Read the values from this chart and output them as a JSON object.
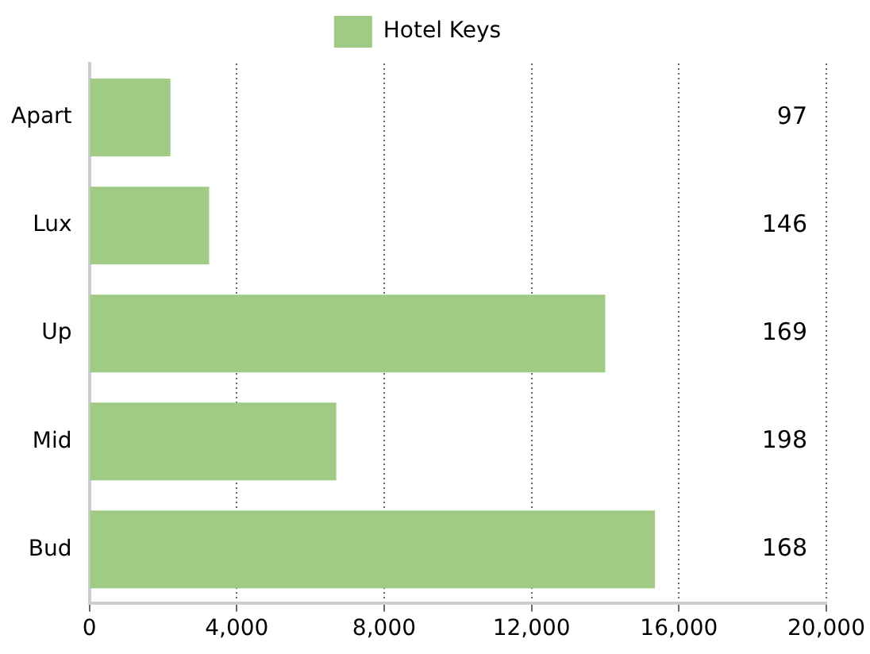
{
  "chart_data": {
    "type": "bar",
    "orientation": "horizontal",
    "categories": [
      "Apart",
      "Lux",
      "Up",
      "Mid",
      "Bud"
    ],
    "series": [
      {
        "name": "Hotel Keys",
        "color": "#9fcb84",
        "values": [
          2200,
          3250,
          14000,
          6700,
          15350
        ]
      }
    ],
    "xlim": [
      0,
      20000
    ],
    "xticks": [
      {
        "value": 0,
        "label": "0"
      },
      {
        "value": 4000,
        "label": "4,000"
      },
      {
        "value": 8000,
        "label": "8,000"
      },
      {
        "value": 12000,
        "label": "12,000"
      },
      {
        "value": 16000,
        "label": "16,000"
      },
      {
        "value": 20000,
        "label": "20,000"
      }
    ],
    "grid": "x",
    "legend": "top",
    "annotations": [
      "97",
      "146",
      "169",
      "198",
      "168"
    ]
  }
}
